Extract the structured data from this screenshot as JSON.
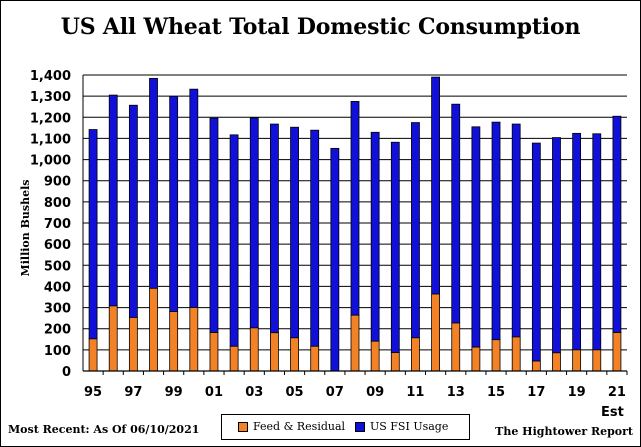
{
  "title": "US All Wheat Total Domestic Consumption",
  "note_left": "Most Recent: As Of 06/10/2021",
  "note_right": "The Hightower Report",
  "est_label": "Est",
  "colors": {
    "feed": "#f28225",
    "fsi": "#1010d8"
  },
  "chart_data": {
    "type": "bar",
    "stacked": true,
    "ylabel": "Million Bushels",
    "ylim": [
      0,
      1400
    ],
    "yticks": [
      "0",
      "100",
      "200",
      "300",
      "400",
      "500",
      "600",
      "700",
      "800",
      "900",
      "1,000",
      "1,100",
      "1,200",
      "1,300",
      "1,400"
    ],
    "categories": [
      "95",
      "96",
      "97",
      "98",
      "99",
      "00",
      "01",
      "02",
      "03",
      "04",
      "05",
      "06",
      "07",
      "08",
      "09",
      "10",
      "11",
      "12",
      "13",
      "14",
      "15",
      "16",
      "17",
      "18",
      "19",
      "20",
      "21"
    ],
    "xtick_labels": [
      "95",
      "",
      "97",
      "",
      "99",
      "",
      "01",
      "",
      "03",
      "",
      "05",
      "",
      "07",
      "",
      "09",
      "",
      "11",
      "",
      "13",
      "",
      "15",
      "",
      "17",
      "",
      "19",
      "",
      "21"
    ],
    "series": [
      {
        "name": "Feed & Residual",
        "values": [
          152,
          308,
          253,
          391,
          281,
          300,
          182,
          117,
          204,
          181,
          157,
          117,
          0,
          264,
          141,
          87,
          157,
          364,
          227,
          113,
          148,
          161,
          47,
          86,
          100,
          100,
          182
        ]
      },
      {
        "name": "US FSI Usage",
        "values": [
          990,
          997,
          1004,
          993,
          1018,
          1033,
          1014,
          1000,
          993,
          987,
          996,
          1022,
          1053,
          1011,
          988,
          995,
          1018,
          1026,
          1035,
          1042,
          1029,
          1007,
          1031,
          1018,
          1024,
          1022,
          1023
        ]
      }
    ],
    "grid": "horizontal",
    "legend": "bottom-center"
  }
}
